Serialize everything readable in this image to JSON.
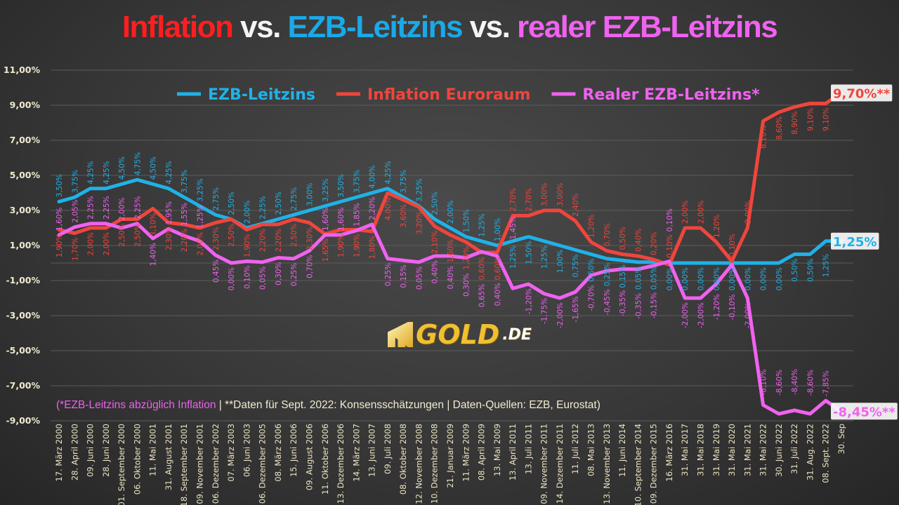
{
  "title": {
    "part1": "Inflation",
    "vs1": " vs. ",
    "part2": "EZB-Leitzins",
    "vs2": " vs. ",
    "part3": "realer EZB-Leitzins"
  },
  "footnote": {
    "part1": "(*EZB-Leitzins abzüglich Inflation",
    "part2": " | **Daten für Sept. 2022: Konsensschätzungen | Daten-Quellen: EZB, Eurostat)"
  },
  "logo": {
    "brand": "GOLD",
    ".de": ".DE"
  },
  "colors": {
    "ezb": "#1fb2e8",
    "inflation": "#f0453c",
    "real": "#f062f0",
    "title_red": "#ff1e1e",
    "title_blue": "#1aa9e8",
    "title_magenta": "#f062f0"
  },
  "chart_data": {
    "type": "line",
    "ylim": [
      -9,
      11
    ],
    "yticks": [
      "11,00%",
      "9,00%",
      "7,00%",
      "5,00%",
      "3,00%",
      "1,00%",
      "-1,00%",
      "-3,00%",
      "-5,00%",
      "-7,00%",
      "-9,00%"
    ],
    "grid": true,
    "legend_position": "top",
    "categories": [
      "17. März 2000",
      "28. April 2000",
      "09. Juni 2000",
      "28. Juni 2000",
      "01. September 2000",
      "06. Oktober 2000",
      "11. Mai 2001",
      "31. August 2001",
      "18. September 2001",
      "09. November 2001",
      "06. Dezember 2002",
      "07. März 2003",
      "06. Juni 2003",
      "06. Dezember 2005",
      "08. März 2006",
      "15. Juni 2006",
      "09. August 2006",
      "11. Oktober 2006",
      "13. Dezember 2006",
      "14. März 2007",
      "13. Juni 2007",
      "09. Juli 2008",
      "08. Oktober 2008",
      "12. November 2008",
      "10. Dezember 2008",
      "21. Januar 2009",
      "11. März 2009",
      "08. April 2009",
      "13. Mai 2009",
      "13. April 2011",
      "13. Juli 2011",
      "09. November 2011",
      "14. Dezember 2011",
      "11. Juli 2012",
      "08. Mai 2013",
      "13. November 2013",
      "11. Juni 2014",
      "10. September 2014",
      "09. Dezember 2015",
      "16. März 2016",
      "31. Mai 2017",
      "31. Mai 2018",
      "31. Mai 2019",
      "31. Mai 2020",
      "31. Mai 2021",
      "31. Mai 2022",
      "30. Juni 2022",
      "31. Juli 2022",
      "31. Aug. 2022",
      "08. Sept. 2022",
      "30. Sep"
    ],
    "series": [
      {
        "name": "EZB-Leitzins",
        "color": "#1fb2e8",
        "values": [
          3.5,
          3.75,
          4.25,
          4.25,
          4.5,
          4.75,
          4.5,
          4.25,
          3.75,
          3.25,
          2.75,
          2.5,
          2.0,
          2.25,
          2.5,
          2.75,
          3.0,
          3.25,
          3.5,
          3.75,
          4.0,
          4.25,
          3.75,
          3.25,
          2.5,
          2.0,
          1.5,
          1.25,
          1.0,
          1.25,
          1.5,
          1.25,
          1.0,
          0.75,
          0.5,
          0.25,
          0.15,
          0.05,
          0.05,
          0.0,
          0.0,
          0.0,
          0.0,
          0.0,
          0.0,
          0.0,
          0.0,
          0.5,
          0.5,
          1.25,
          1.25
        ],
        "end_label": "1,25%"
      },
      {
        "name": "Inflation Euroraum",
        "color": "#f0453c",
        "values": [
          1.9,
          1.7,
          2.0,
          2.0,
          2.5,
          2.5,
          3.1,
          2.3,
          2.2,
          2.0,
          2.3,
          2.5,
          1.9,
          2.2,
          2.2,
          2.5,
          2.3,
          1.65,
          1.9,
          1.9,
          1.8,
          4.0,
          3.6,
          3.2,
          2.1,
          1.6,
          1.2,
          0.6,
          0.6,
          2.7,
          2.7,
          3.0,
          3.0,
          2.4,
          1.2,
          0.7,
          0.5,
          0.4,
          0.2,
          -0.1,
          2.0,
          2.0,
          1.2,
          0.1,
          2.0,
          8.1,
          8.6,
          8.9,
          9.1,
          9.1,
          9.7
        ],
        "end_label": "9,70%**"
      },
      {
        "name": "Realer EZB-Leitzins*",
        "color": "#f062f0",
        "values": [
          1.6,
          2.05,
          2.25,
          2.25,
          2.0,
          2.25,
          1.4,
          1.95,
          1.55,
          1.25,
          0.45,
          0.0,
          0.1,
          0.05,
          0.3,
          0.25,
          0.7,
          1.6,
          1.6,
          1.85,
          2.2,
          0.25,
          0.15,
          0.05,
          0.4,
          0.4,
          0.3,
          0.65,
          0.4,
          -1.45,
          -1.2,
          -1.75,
          -2.0,
          -1.65,
          -0.7,
          -0.45,
          -0.35,
          -0.35,
          -0.15,
          0.1,
          -2.0,
          -2.0,
          -1.2,
          -0.1,
          -2.0,
          -8.1,
          -8.6,
          -8.4,
          -8.6,
          -7.85,
          -8.45
        ],
        "end_label": "-8,45%**"
      }
    ]
  }
}
